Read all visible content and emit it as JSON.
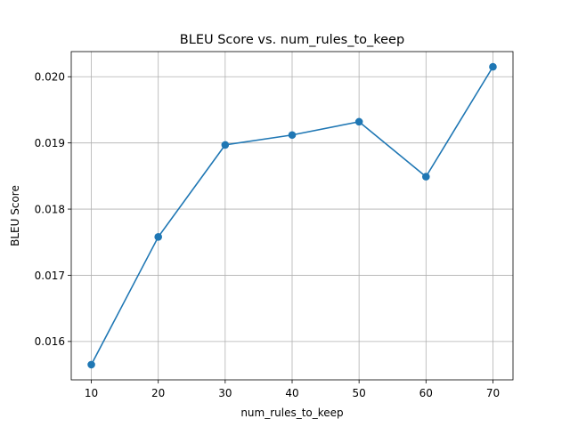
{
  "chart_data": {
    "type": "line",
    "title": "BLEU Score vs. num_rules_to_keep",
    "xlabel": "num_rules_to_keep",
    "ylabel": "BLEU Score",
    "x": [
      10,
      20,
      30,
      40,
      50,
      60,
      70
    ],
    "series": [
      {
        "values": [
          0.01565,
          0.01758,
          0.01897,
          0.01912,
          0.01932,
          0.01849,
          0.02015
        ],
        "color": "#1f77b4",
        "marker": "circle"
      }
    ],
    "xticks": [
      "10",
      "20",
      "30",
      "40",
      "50",
      "60",
      "70"
    ],
    "yticks": [
      "0.016",
      "0.017",
      "0.018",
      "0.019",
      "0.020"
    ],
    "xtick_values": [
      10,
      20,
      30,
      40,
      50,
      60,
      70
    ],
    "ytick_values": [
      0.016,
      0.017,
      0.018,
      0.019,
      0.02
    ],
    "xlim": [
      7,
      73
    ],
    "ylim": [
      0.01542,
      0.02038
    ],
    "grid": true,
    "legend": "none"
  }
}
